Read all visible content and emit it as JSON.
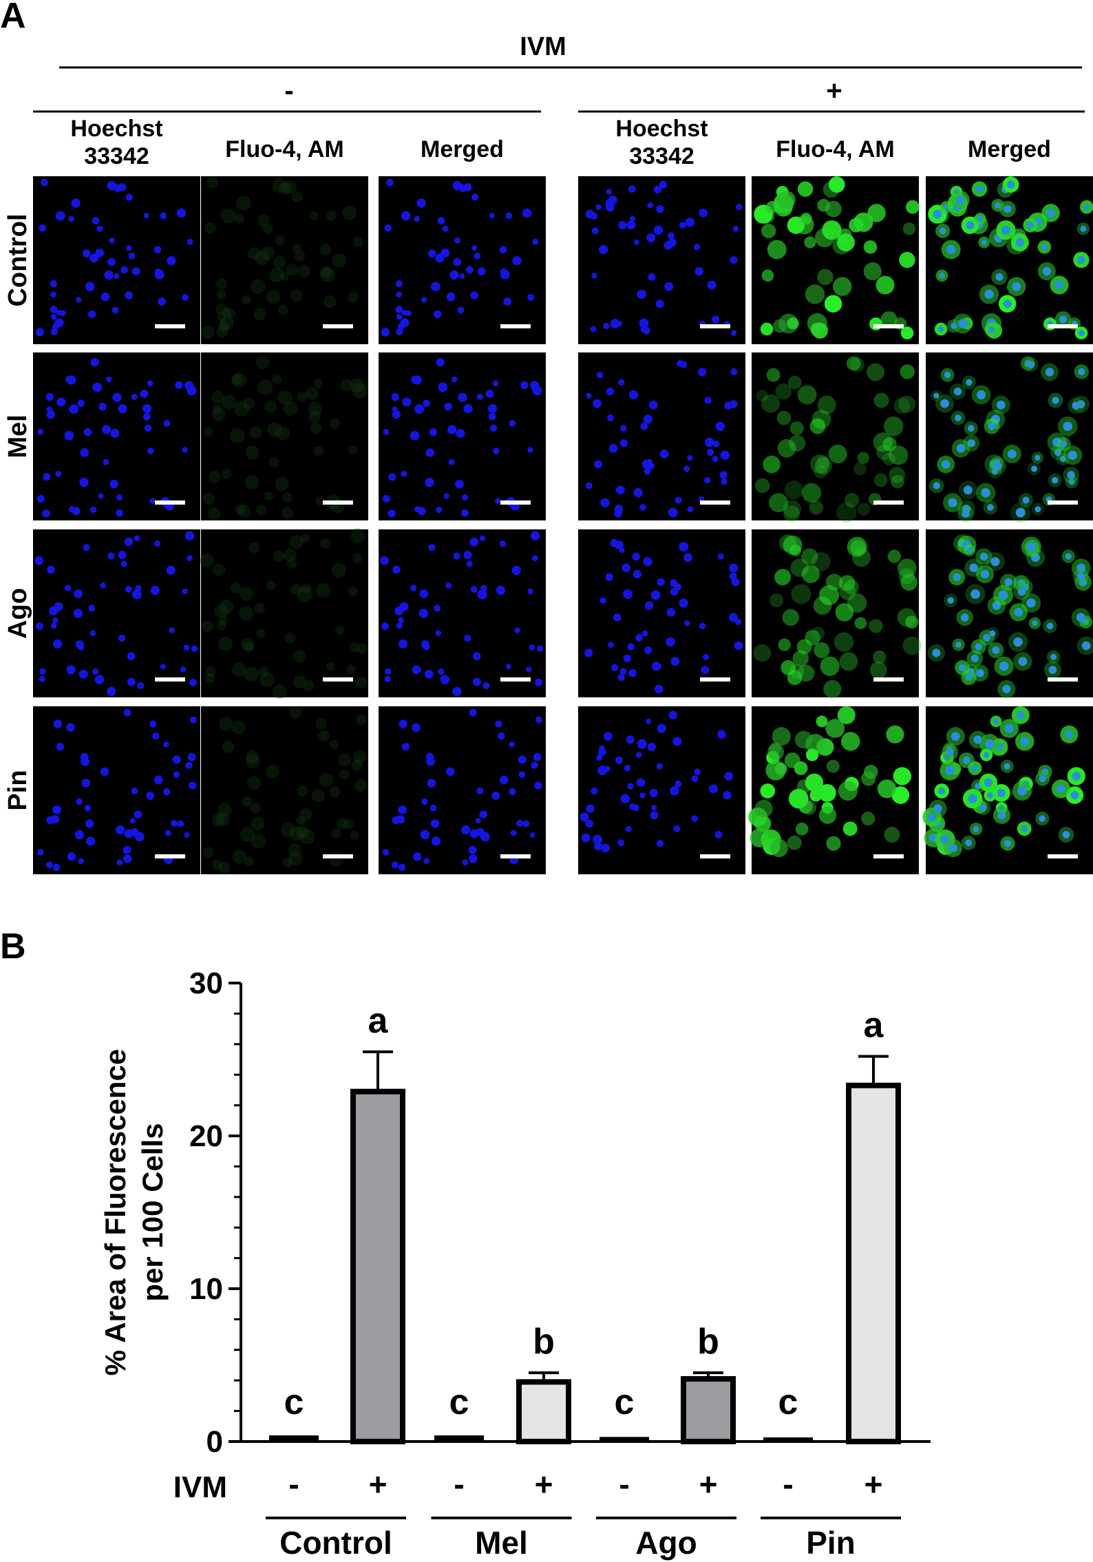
{
  "panel_a": {
    "label": "A",
    "treatment": "IVM",
    "groups": [
      {
        "sign": "-",
        "columns": [
          "Hoechst\n33342",
          "Fluo-4, AM",
          "Merged"
        ],
        "green_levels": [
          0.02,
          0.02,
          0.05,
          0.02
        ]
      },
      {
        "sign": "+",
        "columns": [
          "Hoechst\n33342",
          "Fluo-4, AM",
          "Merged"
        ],
        "green_levels": [
          0.9,
          0.45,
          0.55,
          0.95
        ]
      }
    ],
    "rows": [
      "Control",
      "Mel",
      "Ago",
      "Pin"
    ]
  },
  "panel_b": {
    "label": "B",
    "x_row_label": "IVM",
    "bar_colors": [
      "#9c9ca1",
      "#e4e4e6"
    ]
  },
  "chart_data": {
    "type": "bar",
    "ylabel": "% Area of Fluorescence\nper 100 Cells",
    "ylim": [
      0,
      30
    ],
    "yticks": [
      0,
      10,
      20,
      30
    ],
    "groups": [
      "Control",
      "Mel",
      "Ago",
      "Pin"
    ],
    "bars": [
      {
        "group": "Control",
        "ivm": "-",
        "value": 0.4,
        "error": 0.1,
        "letter": "c"
      },
      {
        "group": "Control",
        "ivm": "+",
        "value": 22.9,
        "error": 2.6,
        "letter": "a"
      },
      {
        "group": "Mel",
        "ivm": "-",
        "value": 0.4,
        "error": 0.1,
        "letter": "c"
      },
      {
        "group": "Mel",
        "ivm": "+",
        "value": 3.9,
        "error": 0.6,
        "letter": "b"
      },
      {
        "group": "Ago",
        "ivm": "-",
        "value": 0.3,
        "error": 0.1,
        "letter": "c"
      },
      {
        "group": "Ago",
        "ivm": "+",
        "value": 4.1,
        "error": 0.4,
        "letter": "b"
      },
      {
        "group": "Pin",
        "ivm": "-",
        "value": 0.2,
        "error": 0.05,
        "letter": "c"
      },
      {
        "group": "Pin",
        "ivm": "+",
        "value": 23.3,
        "error": 1.9,
        "letter": "a"
      }
    ]
  }
}
